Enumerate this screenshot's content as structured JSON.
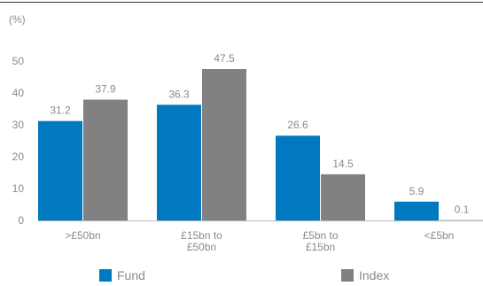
{
  "chart_data": {
    "type": "bar",
    "unit_label": "(%)",
    "categories": [
      [
        ">£50bn"
      ],
      [
        "£15bn to",
        "£50bn"
      ],
      [
        "£5bn to",
        "£15bn"
      ],
      [
        "<£5bn"
      ]
    ],
    "series": [
      {
        "name": "Fund",
        "color": "#0079c1",
        "values": [
          31.2,
          36.3,
          26.6,
          5.9
        ]
      },
      {
        "name": "Index",
        "color": "#818181",
        "values": [
          37.9,
          47.5,
          14.5,
          0.1
        ]
      }
    ],
    "value_labels": [
      [
        "31.2",
        "36.3",
        "26.6",
        "5.9"
      ],
      [
        "37.9",
        "47.5",
        "14.5",
        "0.1"
      ]
    ],
    "yticks": [
      0,
      10,
      20,
      30,
      40,
      50
    ],
    "ytick_labels": [
      "0",
      "10",
      "20",
      "30",
      "40",
      "50"
    ],
    "ylim": [
      0,
      55
    ],
    "grid": false,
    "legend_position": "bottom",
    "title": "",
    "xlabel": "",
    "ylabel": ""
  }
}
